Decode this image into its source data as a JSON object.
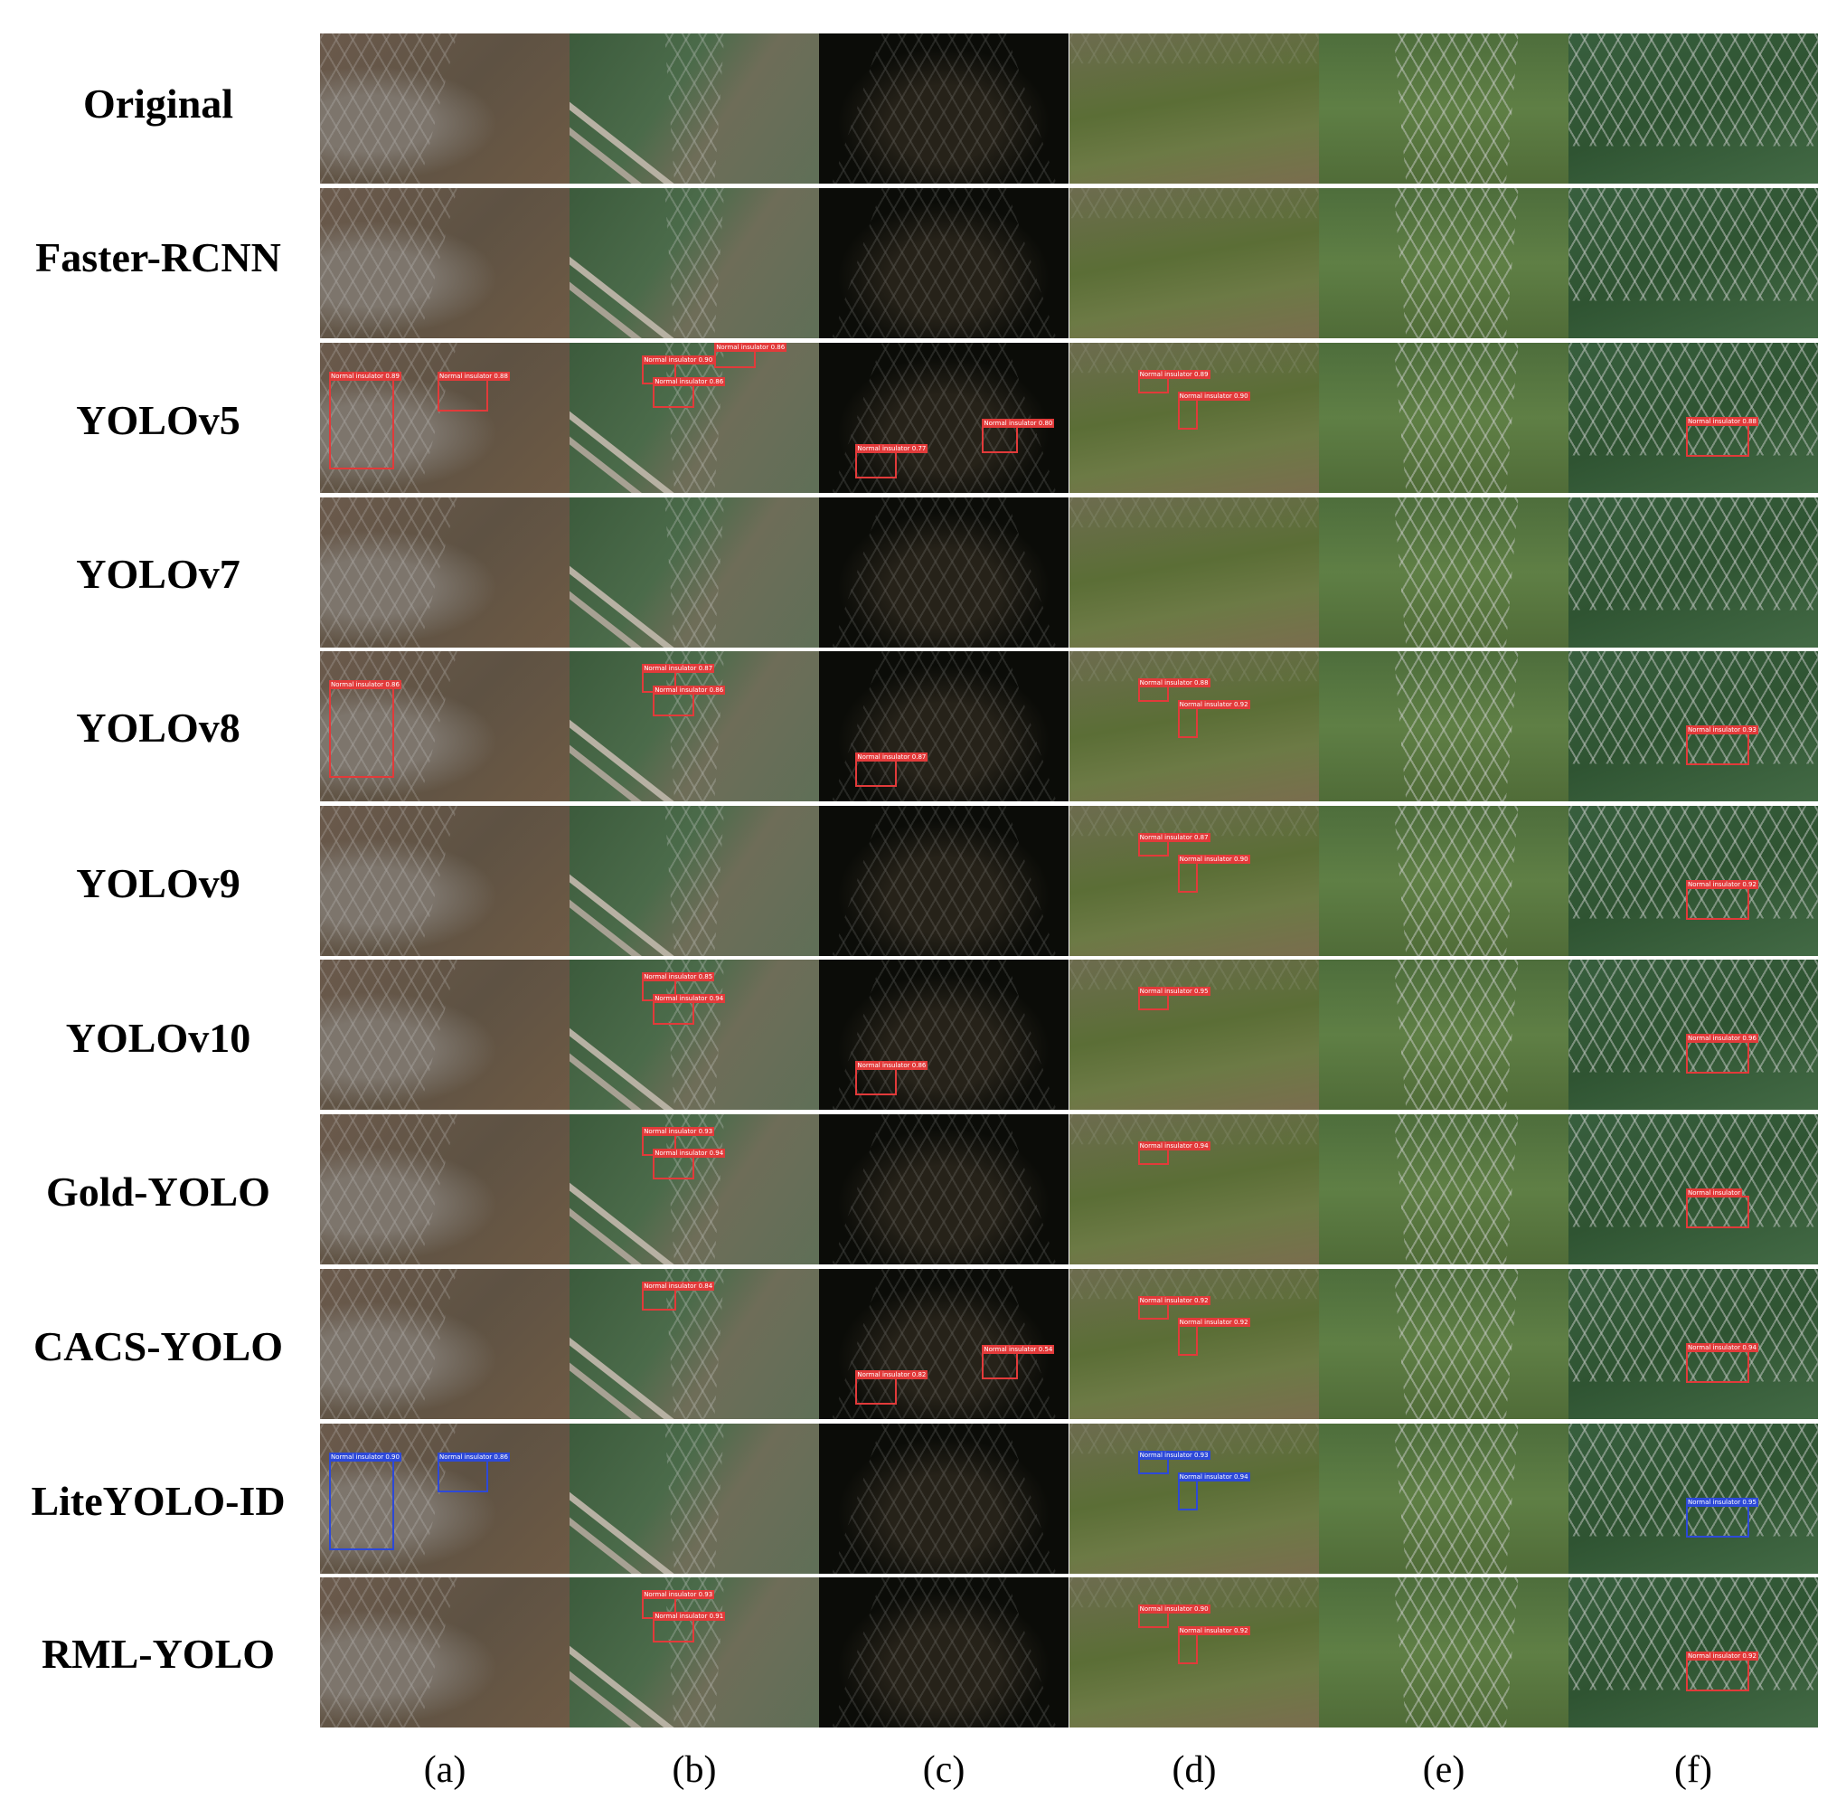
{
  "rows": [
    {
      "label": "Original"
    },
    {
      "label": "Faster-RCNN"
    },
    {
      "label": "YOLOv5"
    },
    {
      "label": "YOLOv7"
    },
    {
      "label": "YOLOv8"
    },
    {
      "label": "YOLOv9"
    },
    {
      "label": "YOLOv10"
    },
    {
      "label": "Gold-YOLO"
    },
    {
      "label": "CACS-YOLO"
    },
    {
      "label": "LiteYOLO-ID"
    },
    {
      "label": "RML-YOLO"
    }
  ],
  "columns": [
    {
      "label": "(a)"
    },
    {
      "label": "(b)"
    },
    {
      "label": "(c)"
    },
    {
      "label": "(d)"
    },
    {
      "label": "(e)"
    },
    {
      "label": "(f)"
    }
  ],
  "detections": {
    "YOLOv5": {
      "a": [
        {
          "text": "Normal insulator 0.89"
        },
        {
          "text": "Normal insulator 0.88"
        }
      ],
      "b": [
        {
          "text": "Normal insulator 0.90"
        },
        {
          "text": "Normal insulator 0.86"
        },
        {
          "text": "Normal insulator 0.86"
        }
      ],
      "c": [
        {
          "text": "Normal insulator 0.77"
        },
        {
          "text": "Normal insulator 0.80"
        }
      ],
      "d": [
        {
          "text": "Normal insulator 0.89"
        },
        {
          "text": "Normal insulator 0.90"
        }
      ],
      "f": [
        {
          "text": "Normal insulator 0.88"
        }
      ]
    },
    "YOLOv8": {
      "a": [
        {
          "text": "Normal insulator 0.86"
        }
      ],
      "b": [
        {
          "text": "Normal insulator 0.87"
        },
        {
          "text": "Normal insulator 0.86"
        }
      ],
      "c": [
        {
          "text": "Normal insulator 0.87"
        }
      ],
      "d": [
        {
          "text": "Normal insulator 0.88"
        },
        {
          "text": "Normal insulator 0.92"
        }
      ],
      "f": [
        {
          "text": "Normal insulator 0.93"
        }
      ]
    },
    "YOLOv9": {
      "d": [
        {
          "text": "Normal insulator 0.87"
        },
        {
          "text": "Normal insulator 0.90"
        }
      ],
      "f": [
        {
          "text": "Normal insulator 0.92"
        }
      ]
    },
    "YOLOv10": {
      "b": [
        {
          "text": "Normal insulator 0.85"
        },
        {
          "text": "Normal insulator 0.94"
        }
      ],
      "c": [
        {
          "text": "Normal insulator 0.86"
        }
      ],
      "d": [
        {
          "text": "Normal insulator 0.95"
        }
      ],
      "f": [
        {
          "text": "Normal insulator 0.96"
        }
      ]
    },
    "Gold-YOLO": {
      "b": [
        {
          "text": "Normal insulator 0.93"
        },
        {
          "text": "Normal insulator 0.94"
        }
      ],
      "d": [
        {
          "text": "Normal insulator 0.94"
        }
      ],
      "f": [
        {
          "text": "Normal insulator"
        }
      ]
    },
    "CACS-YOLO": {
      "b": [
        {
          "text": "Normal insulator 0.84"
        }
      ],
      "c": [
        {
          "text": "Normal insulator 0.82"
        },
        {
          "text": "Normal insulator 0.54"
        }
      ],
      "d": [
        {
          "text": "Normal insulator 0.92"
        },
        {
          "text": "Normal insulator 0.92"
        }
      ],
      "f": [
        {
          "text": "Normal insulator 0.94"
        }
      ]
    },
    "LiteYOLO-ID": {
      "a": [
        {
          "text": "Normal insulator 0.90"
        },
        {
          "text": "Normal insulator 0.86"
        }
      ],
      "d": [
        {
          "text": "Normal insulator 0.93"
        },
        {
          "text": "Normal insulator 0.94"
        }
      ],
      "f": [
        {
          "text": "Normal insulator 0.95"
        }
      ]
    },
    "RML-YOLO": {
      "b": [
        {
          "text": "Normal insulator 0.93"
        },
        {
          "text": "Normal insulator 0.91"
        }
      ],
      "d": [
        {
          "text": "Normal insulator 0.90"
        },
        {
          "text": "Normal insulator 0.92"
        }
      ],
      "f": [
        {
          "text": "Normal insulator 0.92"
        }
      ]
    }
  }
}
